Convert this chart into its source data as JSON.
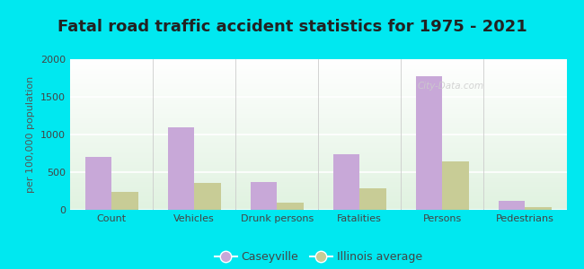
{
  "title": "Fatal road traffic accident statistics for 1975 - 2021",
  "ylabel": "per 100,000 population",
  "categories": [
    "Count",
    "Vehicles",
    "Drunk persons",
    "Fatalities",
    "Persons",
    "Pedestrians"
  ],
  "caseyville": [
    700,
    1100,
    370,
    740,
    1770,
    120
  ],
  "illinois_avg": [
    240,
    360,
    100,
    280,
    640,
    30
  ],
  "caseyville_color": "#c8a8d8",
  "illinois_color": "#c8cc96",
  "outer_background": "#00e8f0",
  "ylim": [
    0,
    2000
  ],
  "yticks": [
    0,
    500,
    1000,
    1500,
    2000
  ],
  "bar_width": 0.32,
  "legend_labels": [
    "Caseyville",
    "Illinois average"
  ],
  "title_fontsize": 13,
  "axis_label_fontsize": 8,
  "tick_fontsize": 8,
  "watermark": "City-Data.com"
}
